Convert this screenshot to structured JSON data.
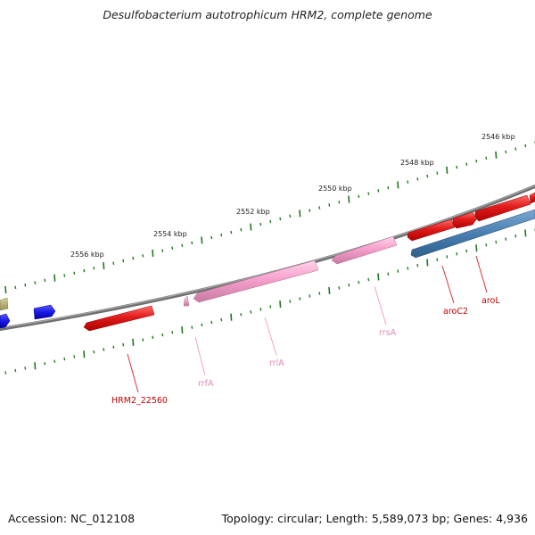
{
  "title": "Desulfobacterium autotrophicum HRM2, complete genome",
  "footer": {
    "accession": "Accession: NC_012108",
    "stats": "Topology: circular; Length: 5,589,073 bp; Genes: 4,936"
  },
  "ruler": {
    "labels": [
      "2546 kbp",
      "2548 kbp",
      "2550 kbp",
      "2552 kbp",
      "2554 kbp",
      "2556 kbp"
    ],
    "tick_color": "#1f7a1f"
  },
  "genes": [
    {
      "label": "aroL",
      "type": "CDS",
      "color": "#e11b1b"
    },
    {
      "label": "aroC2",
      "type": "CDS",
      "color": "#e11b1b"
    },
    {
      "label": "rrsA",
      "type": "rRNA",
      "color": "#f7a1cd"
    },
    {
      "label": "rrlA",
      "type": "rRNA",
      "color": "#f7a1cd"
    },
    {
      "label": "rrfA",
      "type": "rRNA",
      "color": "#f7a1cd"
    },
    {
      "label": "HRM2_22560",
      "type": "CDS",
      "color": "#e11b1b"
    }
  ],
  "colors": {
    "backbone": "#7f7f7f",
    "cds": "#e11b1b",
    "rrna": "#f7a1cd",
    "blue_feature": "#4a7fb0",
    "other_gene": "#1a1ae6",
    "olive_feature": "#b5ad6a",
    "cds_label": "#c00000",
    "rrna_label": "#e08ab8"
  }
}
